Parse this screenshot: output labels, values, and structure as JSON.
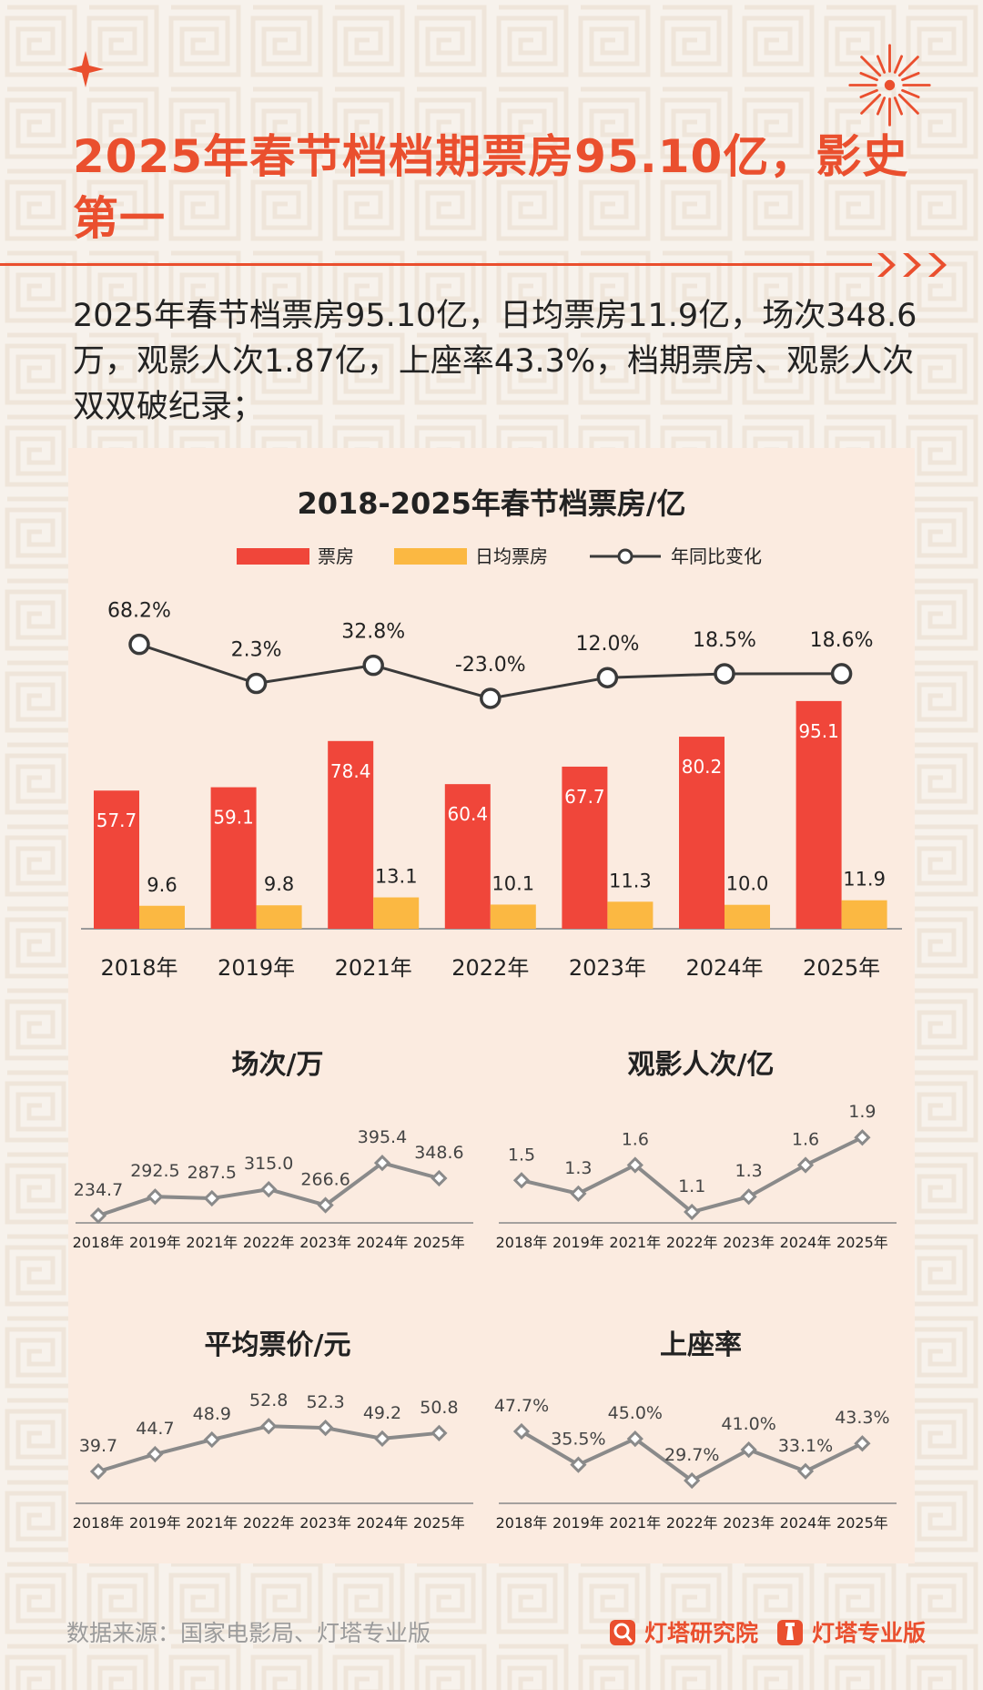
{
  "title": "2025年春节档档期票房95.10亿，影史第一",
  "intro": "2025年春节档票房95.10亿，日均票房11.9亿，场次348.6万，观影人次1.87亿，上座率43.3%，档期票房、观影人次双双破纪录；",
  "colors": {
    "accent": "#ea4f2e",
    "bar_box_office": "#f0463a",
    "bar_daily": "#fbb842",
    "line_yoy": "#3a3a3a",
    "small_line": "#8a8a8a",
    "panel_bg": "#fbebe0",
    "page_bg": "#f7f2ec"
  },
  "footer": {
    "source": "数据来源：国家电影局、灯塔专业版",
    "brand1": "灯塔研究院",
    "brand2": "灯塔专业版"
  },
  "chart_data": [
    {
      "type": "bar",
      "title": "2018-2025年春节档票房/亿",
      "categories": [
        "2018年",
        "2019年",
        "2021年",
        "2022年",
        "2023年",
        "2024年",
        "2025年"
      ],
      "series": [
        {
          "name": "票房",
          "type": "bar",
          "values": [
            57.7,
            59.1,
            78.4,
            60.4,
            67.7,
            80.2,
            95.1
          ]
        },
        {
          "name": "日均票房",
          "type": "bar",
          "values": [
            9.6,
            9.8,
            13.1,
            10.1,
            11.3,
            10.0,
            11.9
          ]
        },
        {
          "name": "年同比变化",
          "type": "line",
          "values": [
            68.2,
            2.3,
            32.8,
            -23.0,
            12.0,
            18.5,
            18.6
          ],
          "labels": [
            "68.2%",
            "2.3%",
            "32.8%",
            "-23.0%",
            "12.0%",
            "18.5%",
            "18.6%"
          ]
        }
      ],
      "legend": "top-center"
    },
    {
      "type": "line",
      "title": "场次/万",
      "categories": [
        "2018年",
        "2019年",
        "2021年",
        "2022年",
        "2023年",
        "2024年",
        "2025年"
      ],
      "values": [
        234.7,
        292.5,
        287.5,
        315.0,
        266.6,
        395.4,
        348.6
      ],
      "labels": [
        "234.7",
        "292.5",
        "287.5",
        "315.0",
        "266.6",
        "395.4",
        "348.6"
      ]
    },
    {
      "type": "line",
      "title": "观影人次/亿",
      "categories": [
        "2018年",
        "2019年",
        "2021年",
        "2022年",
        "2023年",
        "2024年",
        "2025年"
      ],
      "values": [
        1.45,
        1.32,
        1.6,
        1.14,
        1.29,
        1.6,
        1.87
      ],
      "labels": [
        "1.5",
        "1.3",
        "1.6",
        "1.1",
        "1.3",
        "1.6",
        "1.9"
      ]
    },
    {
      "type": "line",
      "title": "平均票价/元",
      "categories": [
        "2018年",
        "2019年",
        "2021年",
        "2022年",
        "2023年",
        "2024年",
        "2025年"
      ],
      "values": [
        39.7,
        44.7,
        48.9,
        52.8,
        52.3,
        49.2,
        50.8
      ],
      "labels": [
        "39.7",
        "44.7",
        "48.9",
        "52.8",
        "52.3",
        "49.2",
        "50.8"
      ]
    },
    {
      "type": "line",
      "title": "上座率",
      "categories": [
        "2018年",
        "2019年",
        "2021年",
        "2022年",
        "2023年",
        "2024年",
        "2025年"
      ],
      "values": [
        47.7,
        35.5,
        45.0,
        29.7,
        41.0,
        33.1,
        43.3
      ],
      "labels": [
        "47.7%",
        "35.5%",
        "45.0%",
        "29.7%",
        "41.0%",
        "33.1%",
        "43.3%"
      ]
    }
  ]
}
